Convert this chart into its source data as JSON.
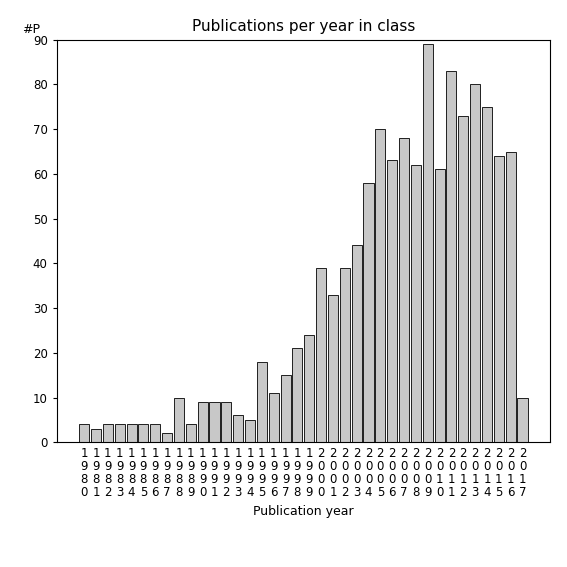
{
  "title": "Publications per year in class",
  "xlabel": "Publication year",
  "ylabel": "#P",
  "years": [
    1980,
    1981,
    1982,
    1983,
    1984,
    1985,
    1986,
    1987,
    1988,
    1989,
    1990,
    1991,
    1992,
    1993,
    1994,
    1995,
    1996,
    1997,
    1998,
    1999,
    2000,
    2001,
    2002,
    2003,
    2004,
    2005,
    2006,
    2007,
    2008,
    2009,
    2010,
    2011,
    2012,
    2013,
    2014,
    2015,
    2016,
    2017
  ],
  "values": [
    4,
    3,
    4,
    4,
    4,
    4,
    4,
    2,
    10,
    4,
    9,
    9,
    9,
    6,
    5,
    18,
    11,
    15,
    21,
    24,
    39,
    33,
    39,
    44,
    58,
    70,
    63,
    68,
    62,
    89,
    61,
    83,
    73,
    80,
    75,
    64,
    65,
    10
  ],
  "bar_color": "#c8c8c8",
  "bar_edgecolor": "#000000",
  "ylim": [
    0,
    90
  ],
  "yticks": [
    0,
    10,
    20,
    30,
    40,
    50,
    60,
    70,
    80,
    90
  ],
  "background_color": "#ffffff",
  "title_fontsize": 11,
  "label_fontsize": 9,
  "tick_fontsize": 8.5
}
